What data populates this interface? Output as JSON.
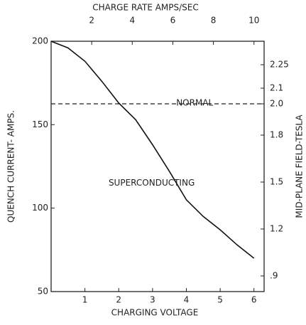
{
  "chart_data": {
    "type": "line",
    "xlabel": "CHARGING VOLTAGE",
    "x2label": "CHARGE RATE AMPS/SEC",
    "ylabel": "QUENCH CURRENT- AMPS.",
    "y2label": "MID-PLANE FIELD-TESLA",
    "x": [
      0,
      0.5,
      1,
      1.5,
      2,
      2.5,
      3,
      3.5,
      4,
      4.5,
      5,
      5.5,
      6
    ],
    "series": [
      {
        "color": "#111111",
        "values": [
          200,
          196,
          188,
          176,
          163,
          153,
          138,
          122,
          105,
          95,
          87,
          78,
          70
        ]
      }
    ],
    "reference_line": {
      "axis": "y2",
      "value": 2.0,
      "style": "dashed"
    },
    "annotations": [
      {
        "text": "NORMAL",
        "x": 3.7,
        "y": 163
      },
      {
        "text": "SUPERCONDUCTING",
        "x": 1.7,
        "y": 115
      }
    ],
    "xlim": [
      0,
      6.3
    ],
    "xticks": [
      1,
      2,
      3,
      4,
      5,
      6
    ],
    "x2lim": [
      0,
      10.5
    ],
    "x2ticks": [
      2,
      4,
      6,
      8,
      10
    ],
    "ylim": [
      50,
      200
    ],
    "yticks": [
      50,
      100,
      150,
      200
    ],
    "y2lim": [
      0.8,
      2.4
    ],
    "y2ticks": [
      2.25,
      2.1,
      {
        "value": 2.0,
        "label": "2.0"
      },
      1.8,
      1.5,
      1.2,
      {
        "value": 0.9,
        "label": ".9"
      }
    ]
  }
}
